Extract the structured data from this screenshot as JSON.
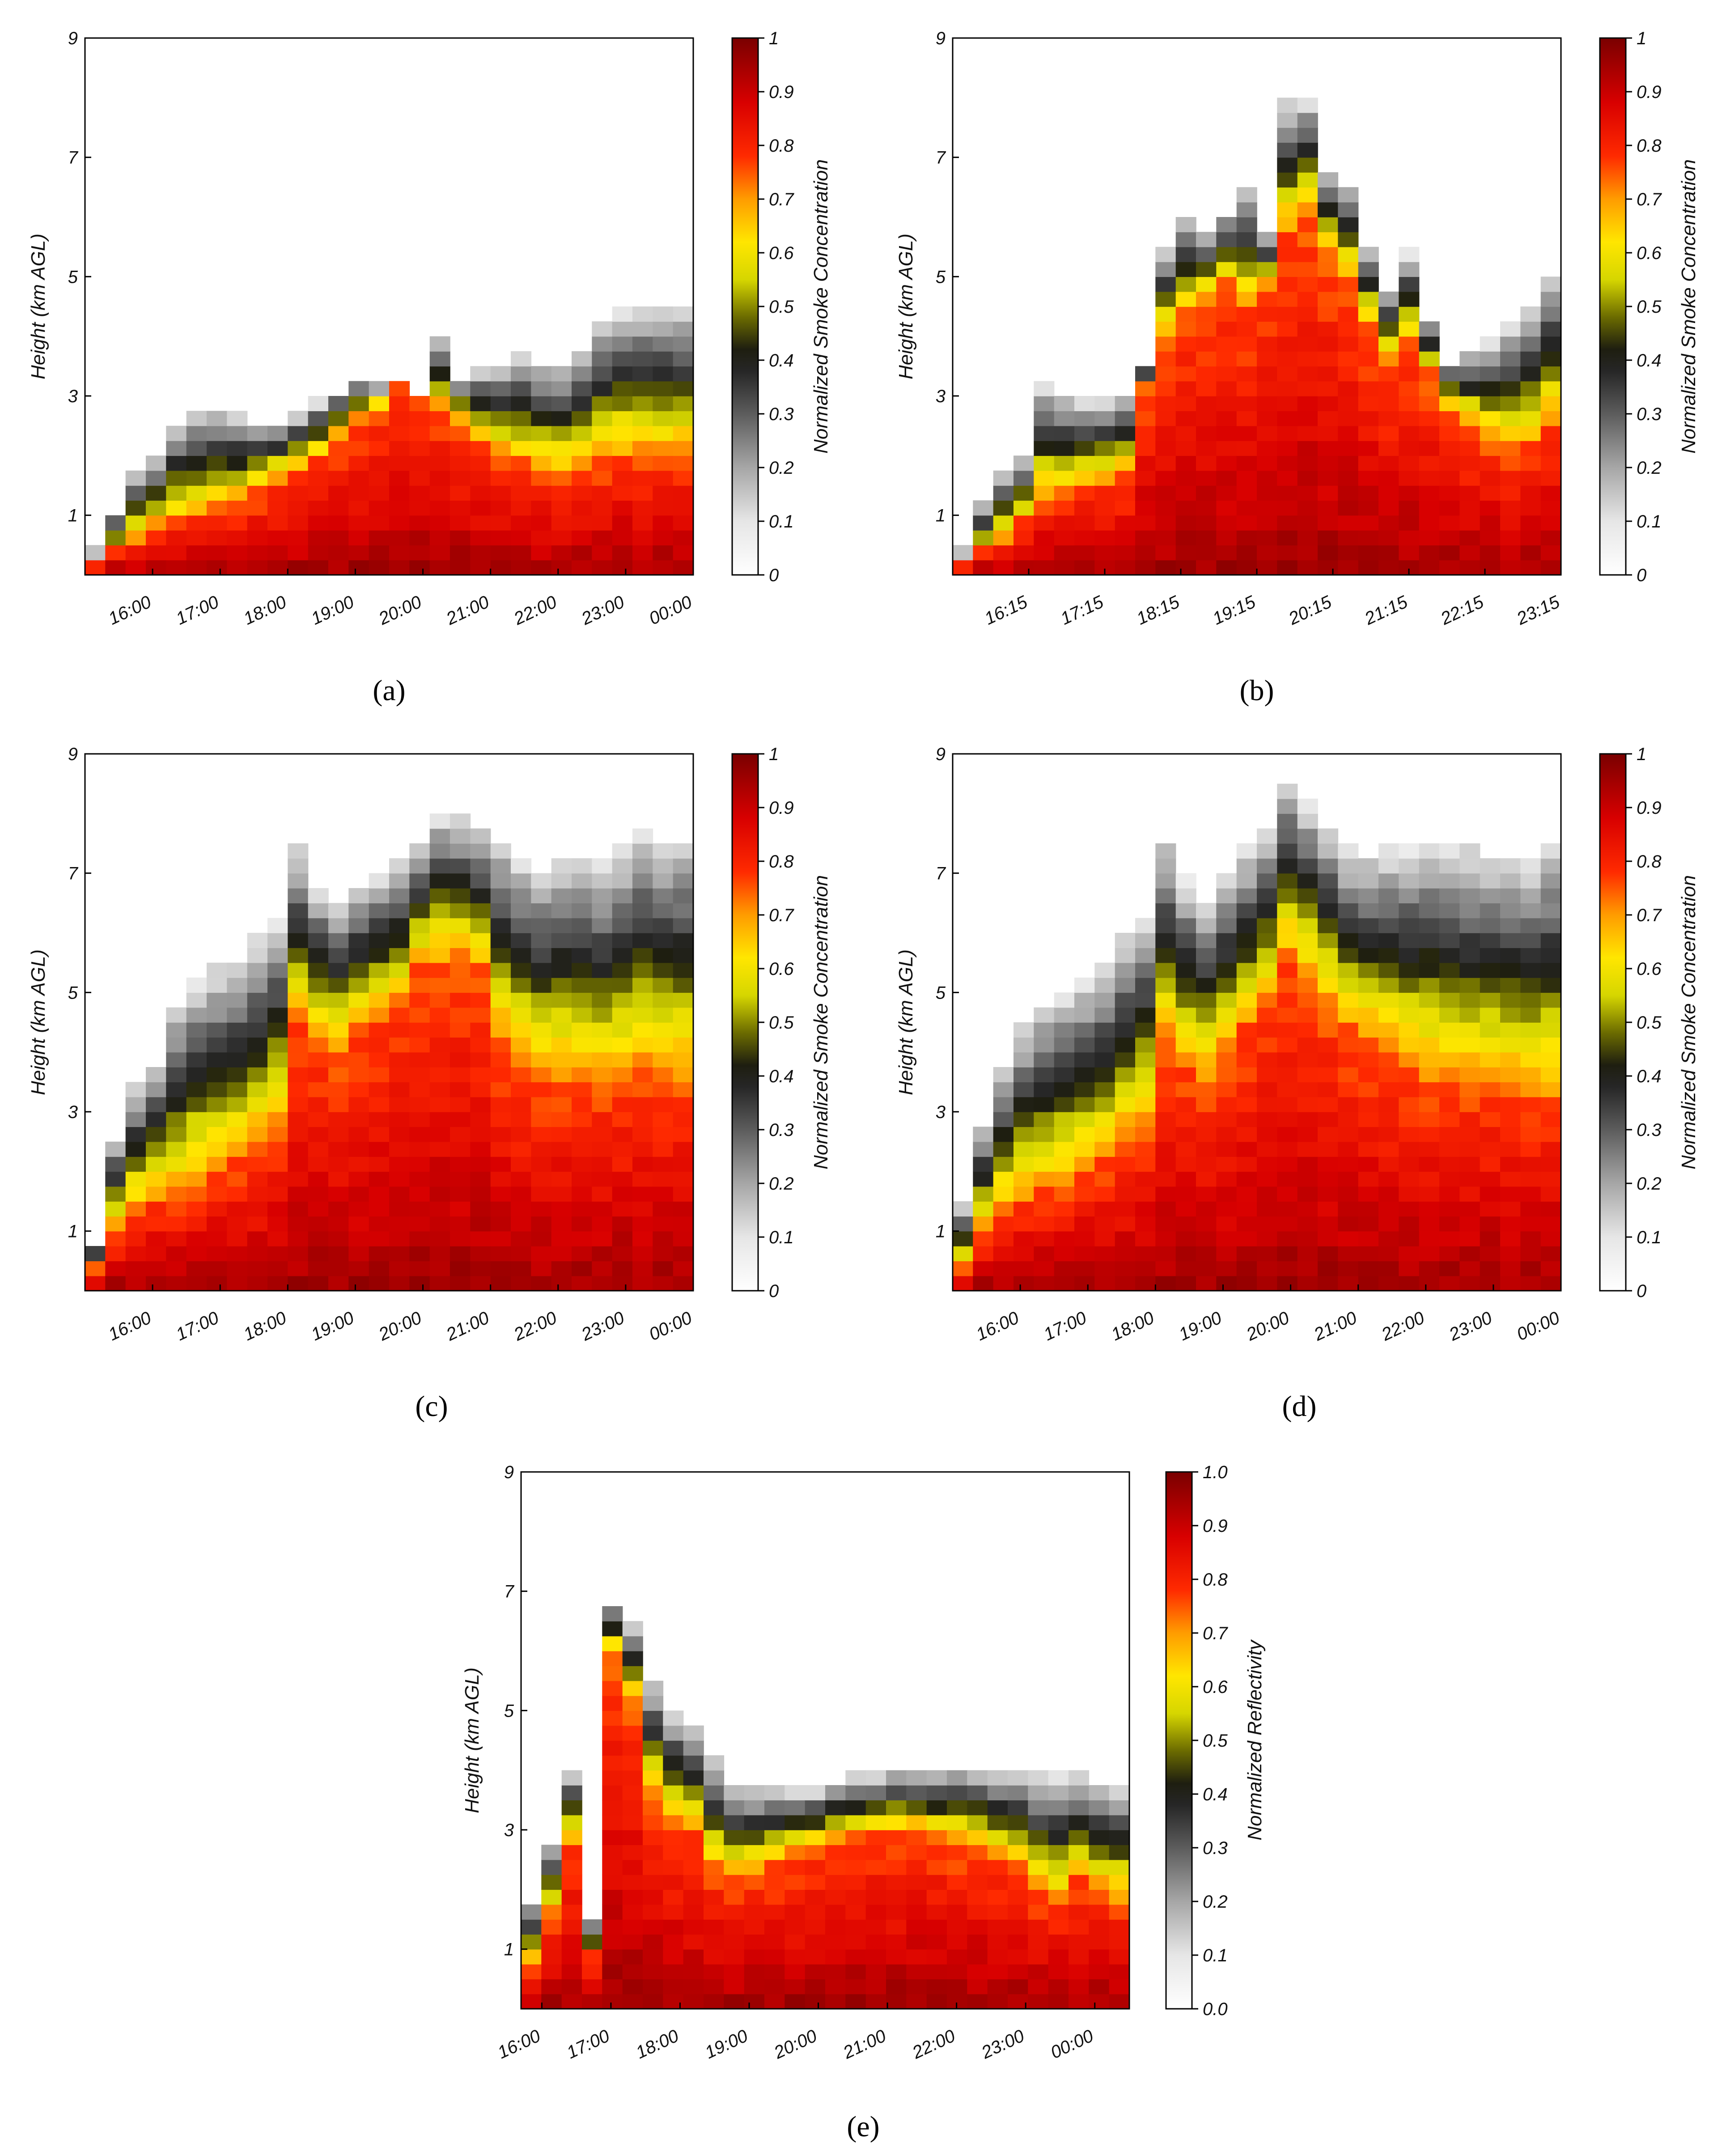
{
  "chart_data": [
    {
      "type": "heatmap",
      "panel": "a",
      "ylabel": "Height (km AGL)",
      "yticks": [
        "1",
        "3",
        "5",
        "7",
        "9"
      ],
      "ylim": [
        0,
        9
      ],
      "xticks": [
        "16:00",
        "17:00",
        "18:00",
        "19:00",
        "20:00",
        "21:00",
        "22:00",
        "23:00",
        "00:00"
      ],
      "xlim_hours": [
        15.0,
        24.0
      ],
      "colorbar_label": "Normalized Smoke Concentration",
      "colorbar_ticks": [
        "0",
        "0.1",
        "0.2",
        "0.3",
        "0.4",
        "0.5",
        "0.6",
        "0.7",
        "0.8",
        "0.9",
        "1"
      ],
      "smoke_top_km": [
        0.4,
        1.1,
        1.8,
        2.0,
        2.6,
        2.8,
        2.8,
        2.7,
        2.6,
        2.6,
        2.7,
        2.9,
        3.1,
        3.3,
        3.2,
        3.2,
        3.0,
        4.0,
        3.3,
        3.5,
        3.6,
        3.7,
        3.6,
        3.6,
        3.8,
        4.3,
        4.5,
        4.5,
        4.5,
        4.5
      ],
      "core_top_km": [
        0.2,
        0.4,
        0.6,
        0.8,
        0.9,
        1.0,
        1.1,
        1.2,
        1.4,
        1.6,
        1.8,
        2.0,
        2.3,
        2.6,
        2.8,
        3.3,
        3.5,
        2.8,
        2.6,
        2.2,
        2.0,
        1.9,
        1.8,
        1.7,
        1.8,
        1.9,
        2.0,
        2.0,
        2.0,
        2.0
      ],
      "caption": "(a)"
    },
    {
      "type": "heatmap",
      "panel": "b",
      "ylabel": "Height (km AGL)",
      "yticks": [
        "1",
        "3",
        "5",
        "7",
        "9"
      ],
      "ylim": [
        0,
        9
      ],
      "xticks": [
        "16:15",
        "17:15",
        "18:15",
        "19:15",
        "20:15",
        "21:15",
        "22:15",
        "23:15"
      ],
      "xlim_hours": [
        15.25,
        23.25
      ],
      "colorbar_label": "Normalized Smoke Concentration",
      "colorbar_ticks": [
        "0",
        "0.1",
        "0.2",
        "0.3",
        "0.4",
        "0.5",
        "0.6",
        "0.7",
        "0.8",
        "0.9",
        "1"
      ],
      "smoke_top_km": [
        0.4,
        1.2,
        1.8,
        2.0,
        3.2,
        3.0,
        2.9,
        2.9,
        3.0,
        3.5,
        5.5,
        6.0,
        5.8,
        6.1,
        6.5,
        5.8,
        7.9,
        8.0,
        6.8,
        6.6,
        5.5,
        4.8,
        5.4,
        4.3,
        3.6,
        3.8,
        3.9,
        4.2,
        4.5,
        5.0
      ],
      "core_top_km": [
        0.2,
        0.4,
        0.6,
        0.9,
        1.3,
        1.4,
        1.5,
        1.6,
        1.7,
        3.2,
        4.0,
        4.4,
        4.6,
        4.9,
        4.5,
        4.8,
        5.8,
        6.0,
        5.4,
        5.0,
        4.2,
        3.6,
        3.9,
        3.4,
        2.8,
        2.5,
        2.3,
        2.1,
        2.2,
        2.6
      ],
      "caption": "(b)"
    },
    {
      "type": "heatmap",
      "panel": "c",
      "ylabel": "Height (km AGL)",
      "yticks": [
        "1",
        "3",
        "5",
        "7",
        "9"
      ],
      "ylim": [
        0,
        9
      ],
      "xticks": [
        "16:00",
        "17:00",
        "18:00",
        "19:00",
        "20:00",
        "21:00",
        "22:00",
        "23:00",
        "00:00"
      ],
      "xlim_hours": [
        15.0,
        24.0
      ],
      "colorbar_label": "Normalized Smoke Concentration",
      "colorbar_ticks": [
        "0",
        "0.1",
        "0.2",
        "0.3",
        "0.4",
        "0.5",
        "0.6",
        "0.7",
        "0.8",
        "0.9",
        "1"
      ],
      "smoke_top_km": [
        0.8,
        2.6,
        3.4,
        3.8,
        4.8,
        5.2,
        5.4,
        5.6,
        5.9,
        6.2,
        7.4,
        6.8,
        6.6,
        6.8,
        7.0,
        7.2,
        7.6,
        8.0,
        7.9,
        7.8,
        7.6,
        7.3,
        7.1,
        7.2,
        7.3,
        7.2,
        7.4,
        7.8,
        7.6,
        7.6
      ],
      "core_top_km": [
        0.4,
        1.0,
        1.4,
        1.6,
        1.6,
        1.8,
        2.0,
        2.2,
        2.4,
        2.8,
        4.6,
        4.2,
        4.0,
        4.4,
        4.6,
        4.8,
        5.4,
        5.5,
        5.6,
        5.4,
        4.2,
        3.8,
        3.6,
        3.6,
        3.6,
        3.5,
        3.6,
        3.7,
        3.6,
        3.6
      ],
      "caption": "(c)"
    },
    {
      "type": "heatmap",
      "panel": "d",
      "ylabel": "Height (km AGL)",
      "yticks": [
        "1",
        "3",
        "5",
        "7",
        "9"
      ],
      "ylim": [
        0,
        9
      ],
      "xticks": [
        "16:00",
        "17:00",
        "18:00",
        "19:00",
        "20:00",
        "21:00",
        "22:00",
        "23:00",
        "00:00"
      ],
      "xlim_hours": [
        15.0,
        24.0
      ],
      "colorbar_label": "Normalized Smoke Concentration",
      "colorbar_ticks": [
        "0",
        "0.1",
        "0.2",
        "0.3",
        "0.4",
        "0.5",
        "0.6",
        "0.7",
        "0.8",
        "0.9",
        "1"
      ],
      "smoke_top_km": [
        1.5,
        2.8,
        3.7,
        4.4,
        4.8,
        5.0,
        5.2,
        5.5,
        6.0,
        6.3,
        7.6,
        6.9,
        6.6,
        7.0,
        7.4,
        7.8,
        8.6,
        8.2,
        7.8,
        7.4,
        7.3,
        7.4,
        7.4,
        7.5,
        7.4,
        7.4,
        7.3,
        7.3,
        7.2,
        7.5
      ],
      "core_top_km": [
        0.4,
        1.0,
        1.4,
        1.6,
        1.7,
        1.8,
        2.0,
        2.2,
        2.5,
        2.8,
        4.2,
        3.8,
        3.6,
        4.0,
        4.4,
        4.8,
        5.6,
        5.2,
        4.8,
        4.4,
        4.2,
        4.0,
        3.8,
        3.6,
        3.6,
        3.5,
        3.5,
        3.4,
        3.3,
        3.3
      ],
      "caption": "(d)"
    },
    {
      "type": "heatmap",
      "panel": "e",
      "ylabel": "Height (km AGL)",
      "yticks": [
        "1",
        "3",
        "5",
        "7",
        "9"
      ],
      "ylim": [
        0,
        9
      ],
      "xticks": [
        "16:00",
        "17:00",
        "18:00",
        "19:00",
        "20:00",
        "21:00",
        "22:00",
        "23:00",
        "00:00"
      ],
      "xlim_hours": [
        15.7,
        24.5
      ],
      "colorbar_label": "Normalized Reflectivity",
      "colorbar_ticks": [
        "0.0",
        "0.1",
        "0.2",
        "0.3",
        "0.4",
        "0.5",
        "0.6",
        "0.7",
        "0.8",
        "0.9",
        "1.0"
      ],
      "smoke_top_km": [
        1.8,
        2.8,
        4.0,
        1.5,
        6.8,
        6.5,
        5.5,
        5.0,
        4.8,
        4.2,
        3.8,
        3.7,
        3.8,
        3.7,
        3.7,
        3.8,
        3.9,
        3.9,
        4.0,
        4.0,
        4.0,
        4.1,
        4.0,
        4.0,
        4.0,
        3.9,
        3.9,
        3.9,
        3.8,
        3.8
      ],
      "core_top_km": [
        0.8,
        1.6,
        2.8,
        0.9,
        6.0,
        5.2,
        3.6,
        3.2,
        3.0,
        2.4,
        2.2,
        2.3,
        2.4,
        2.6,
        2.7,
        2.8,
        2.9,
        3.0,
        3.0,
        3.0,
        2.9,
        2.8,
        2.8,
        2.6,
        2.4,
        2.0,
        1.8,
        2.2,
        2.0,
        1.8
      ],
      "caption": "(e)"
    }
  ]
}
